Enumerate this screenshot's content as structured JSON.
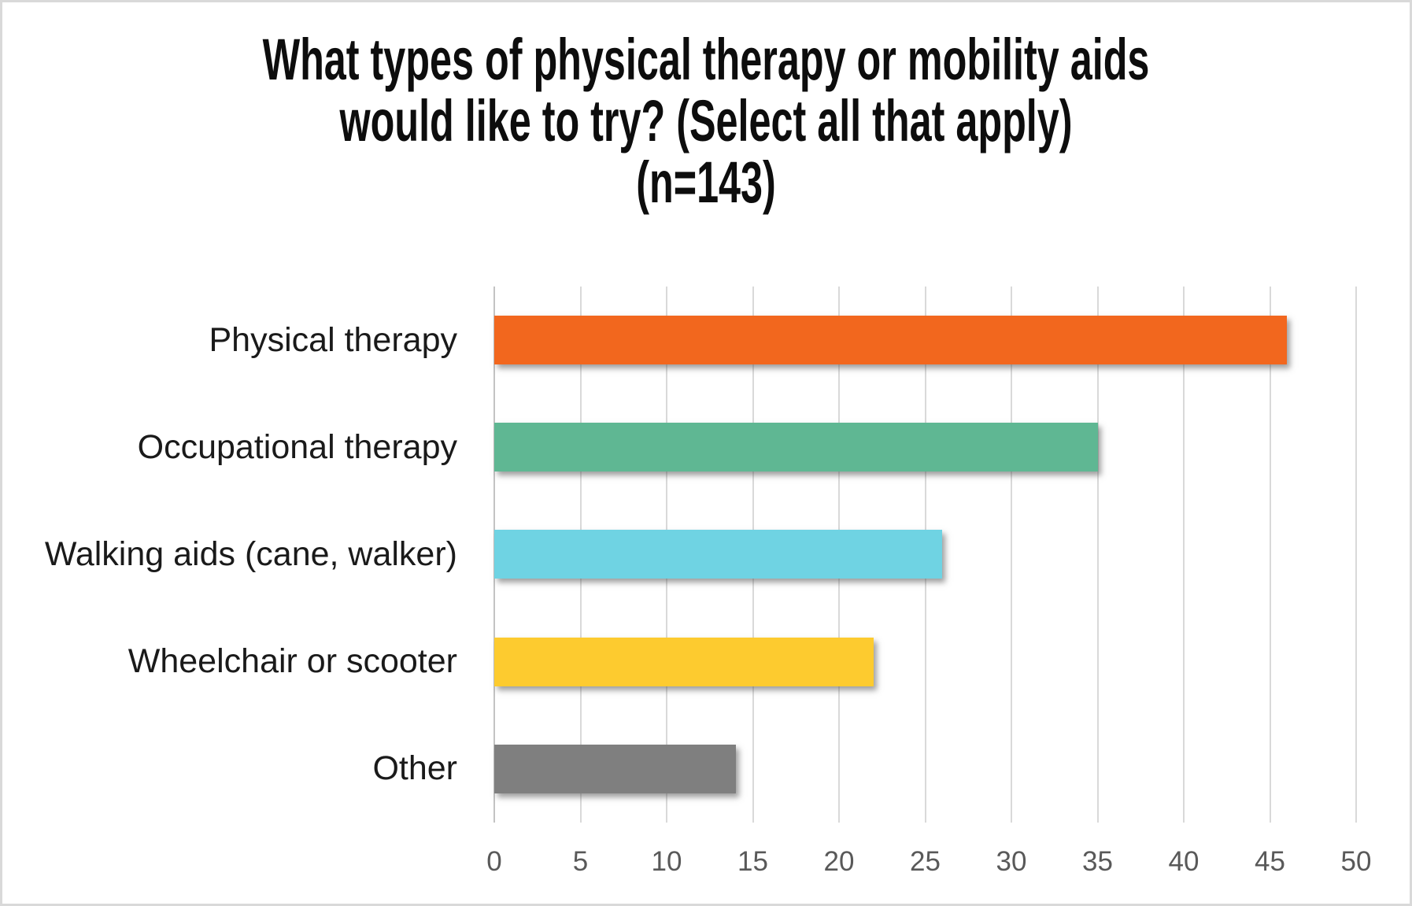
{
  "window": {
    "background": "#FFFFFF",
    "border_color": "#D9D9D9"
  },
  "title": {
    "line1": "What types of physical therapy or mobility aids",
    "line2": "would like to try? (Select all that apply)",
    "line3": "(n=143)"
  },
  "chart_data": {
    "type": "bar",
    "orientation": "horizontal",
    "title": "What types of physical therapy or mobility aids would like to try? (Select all that apply) (n=143)",
    "sample_size_label": "(n=143)",
    "categories": [
      "Physical therapy",
      "Occupational therapy",
      "Walking aids (cane, walker)",
      "Wheelchair or scooter",
      "Other"
    ],
    "values": [
      46,
      35,
      26,
      22,
      14
    ],
    "bar_colors": [
      "#F2671E",
      "#5FB793",
      "#6FD3E3",
      "#FDCB2F",
      "#7F7F7F"
    ],
    "xlim": [
      0,
      50
    ],
    "x_ticks": [
      0,
      5,
      10,
      15,
      20,
      25,
      30,
      35,
      40,
      45,
      50
    ],
    "grid": "vertical-only",
    "legend": "none",
    "title_color": "#0D0D0D",
    "category_label_color": "#1A1A1A",
    "tick_label_color": "#595959",
    "gridline_color": "#D9D9D9"
  }
}
